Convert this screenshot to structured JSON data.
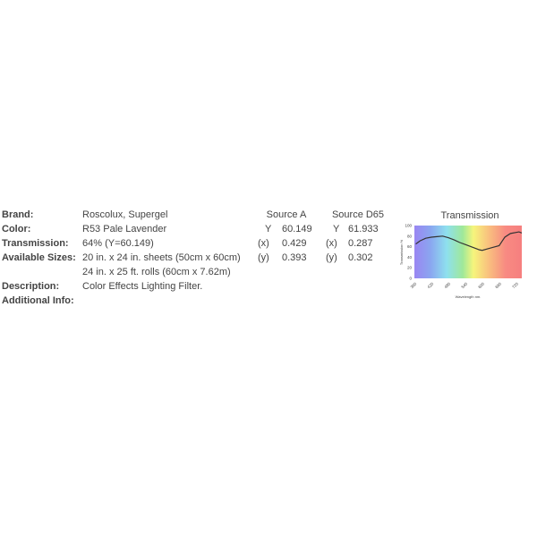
{
  "rows": [
    {
      "label": "Brand:",
      "value": "Roscolux, Supergel"
    },
    {
      "label": "Color:",
      "value": "R53 Pale Lavender"
    },
    {
      "label": "Transmission:",
      "value": "64% (Y=60.149)"
    },
    {
      "label": "Available Sizes:",
      "value": "20 in. x 24 in. sheets (50cm x 60cm)"
    },
    {
      "label": "",
      "value": "24 in. x 25 ft. rolls (60cm x 7.62m)"
    },
    {
      "label": "Description:",
      "value": "Color Effects Lighting Filter."
    },
    {
      "label": "Additional Info:",
      "value": ""
    }
  ],
  "sources": [
    {
      "title": "Source A",
      "Y_label": "Y",
      "Y": "60.149",
      "x_label": "(x)",
      "x": "0.429",
      "y_label": "(y)",
      "y": "0.393"
    },
    {
      "title": "Source D65",
      "Y_label": "Y",
      "Y": "61.933",
      "x_label": "(x)",
      "x": "0.287",
      "y_label": "(y)",
      "y": "0.302"
    }
  ],
  "chart_data": {
    "type": "line",
    "title": "Transmission",
    "xlabel": "Wavelength nm.",
    "ylabel": "Transmission %",
    "xlim": [
      360,
      740
    ],
    "ylim": [
      0,
      100
    ],
    "xticks": [
      360,
      420,
      480,
      540,
      600,
      660,
      720
    ],
    "yticks": [
      0,
      20,
      40,
      60,
      80,
      100
    ],
    "background": "visible spectrum gradient",
    "x": [
      365,
      380,
      400,
      420,
      440,
      460,
      480,
      500,
      520,
      540,
      560,
      580,
      590,
      600,
      620,
      640,
      660,
      670,
      680,
      700,
      720,
      730,
      740
    ],
    "y": [
      65,
      71,
      76,
      78,
      79,
      80,
      77,
      73,
      68,
      64,
      60,
      56,
      54,
      53,
      56,
      59,
      62,
      70,
      78,
      85,
      87,
      88,
      86
    ],
    "line_color": "#333333"
  }
}
